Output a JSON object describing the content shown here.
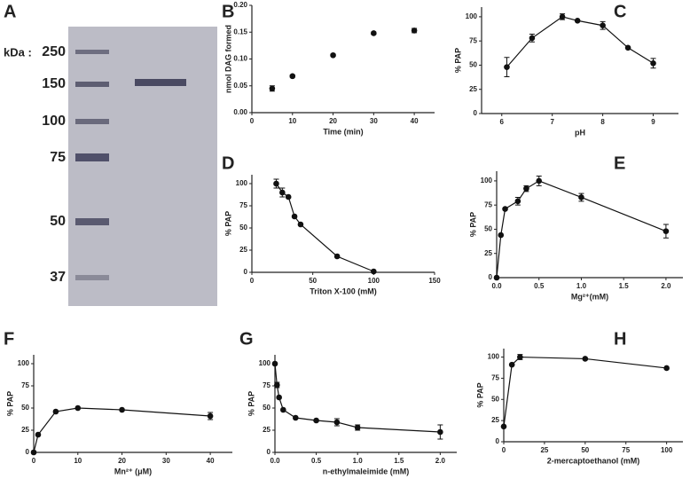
{
  "gel": {
    "panel_label": "A",
    "unit_label": "kDa :",
    "markers": [
      "250",
      "150",
      "100",
      "75",
      "50",
      "37"
    ]
  },
  "chart_data": [
    {
      "type": "scatter",
      "panel_label": "B",
      "xlabel": "Time (min)",
      "ylabel": "nmol DAG formed",
      "color": "#111",
      "x": [
        5,
        10,
        20,
        30,
        40
      ],
      "values": [
        0.045,
        0.068,
        0.107,
        0.148,
        0.153
      ],
      "errors": [
        0.005,
        0.002,
        0.002,
        0.002,
        0.004
      ],
      "xlim": [
        0,
        45
      ],
      "xticks": [
        0,
        10,
        20,
        30,
        40
      ],
      "ylim": [
        0,
        0.2
      ],
      "yticks": [
        {
          "value": 0,
          "label": "0.00"
        },
        {
          "value": 0.05,
          "label": "0.05"
        },
        {
          "value": 0.1,
          "label": "0.10"
        },
        {
          "value": 0.15,
          "label": "0.15"
        },
        {
          "value": 0.2,
          "label": "0.20"
        }
      ]
    },
    {
      "type": "line",
      "panel_label": "C",
      "xlabel": "pH",
      "ylabel": "% PAP",
      "color": "#111",
      "x": [
        6.1,
        6.6,
        7.2,
        7.5,
        8.0,
        8.5,
        9.0
      ],
      "values": [
        48,
        78,
        100,
        96,
        91,
        68,
        52
      ],
      "errors": [
        10,
        4,
        3,
        0,
        4,
        0,
        5
      ],
      "xlim": [
        5.6,
        9.5
      ],
      "xticks": [
        6,
        7,
        8,
        9
      ],
      "ylim": [
        0,
        110
      ],
      "yticks": [
        0,
        25,
        50,
        75,
        100
      ]
    },
    {
      "type": "line",
      "panel_label": "D",
      "xlabel": "Triton X-100 (mM)",
      "ylabel": "% PAP",
      "color": "#111",
      "x": [
        20,
        25,
        30,
        35,
        40,
        70,
        100
      ],
      "values": [
        100,
        90,
        85,
        63,
        54,
        18,
        1
      ],
      "errors": [
        5,
        5,
        0,
        0,
        0,
        0,
        0
      ],
      "xlim": [
        0,
        150
      ],
      "xticks": [
        0,
        50,
        100,
        150
      ],
      "ylim": [
        0,
        110
      ],
      "yticks": [
        0,
        25,
        50,
        75,
        100
      ]
    },
    {
      "type": "line",
      "panel_label": "E",
      "xlabel": "Mg²⁺(mM)",
      "ylabel": "% PAP",
      "color": "#111",
      "x": [
        0,
        0.05,
        0.1,
        0.25,
        0.35,
        0.5,
        1.0,
        2.0
      ],
      "values": [
        0,
        44,
        71,
        79,
        92,
        100,
        83,
        48
      ],
      "errors": [
        0,
        0,
        0,
        4,
        3,
        5,
        4,
        7
      ],
      "xlim": [
        0,
        2.2
      ],
      "xticks": [
        {
          "value": 0,
          "label": "0.0"
        },
        {
          "value": 0.5,
          "label": "0.5"
        },
        {
          "value": 1,
          "label": "1.0"
        },
        {
          "value": 1.5,
          "label": "1.5"
        },
        {
          "value": 2,
          "label": "2.0"
        }
      ],
      "ylim": [
        0,
        110
      ],
      "yticks": [
        0,
        25,
        50,
        75,
        100
      ]
    },
    {
      "type": "line",
      "panel_label": "F",
      "xlabel": "Mn²⁺ (μM)",
      "ylabel": "% PAP",
      "color": "#111",
      "x": [
        0,
        1,
        5,
        10,
        20,
        40
      ],
      "values": [
        0,
        20,
        46,
        50,
        48,
        41
      ],
      "errors": [
        0,
        0,
        0,
        0,
        0,
        4
      ],
      "xlim": [
        0,
        45
      ],
      "xticks": [
        0,
        10,
        20,
        30,
        40
      ],
      "ylim": [
        0,
        110
      ],
      "yticks": [
        0,
        25,
        50,
        75,
        100
      ]
    },
    {
      "type": "line",
      "panel_label": "G",
      "xlabel": "n-ethylmaleimide (mM)",
      "ylabel": "% PAP",
      "color": "#111",
      "x": [
        0,
        0.025,
        0.05,
        0.1,
        0.25,
        0.5,
        0.75,
        1.0,
        2.0
      ],
      "values": [
        100,
        76,
        62,
        48,
        39,
        36,
        34,
        28,
        23
      ],
      "errors": [
        0,
        3,
        0,
        0,
        0,
        0,
        4,
        3,
        8
      ],
      "xlim": [
        0,
        2.2
      ],
      "xticks": [
        {
          "value": 0,
          "label": "0.0"
        },
        {
          "value": 0.5,
          "label": "0.5"
        },
        {
          "value": 1,
          "label": "1.0"
        },
        {
          "value": 1.5,
          "label": "1.5"
        },
        {
          "value": 2,
          "label": "2.0"
        }
      ],
      "ylim": [
        0,
        110
      ],
      "yticks": [
        0,
        25,
        50,
        75,
        100
      ]
    },
    {
      "type": "line",
      "panel_label": "H",
      "xlabel": "2-mercaptoethanol (mM)",
      "ylabel": "% PAP",
      "color": "#111",
      "x": [
        0,
        5,
        10,
        50,
        100
      ],
      "values": [
        18,
        91,
        100,
        98,
        87
      ],
      "errors": [
        0,
        0,
        3,
        0,
        0
      ],
      "xlim": [
        0,
        110
      ],
      "xticks": [
        0,
        25,
        50,
        75,
        100
      ],
      "ylim": [
        0,
        110
      ],
      "yticks": [
        0,
        25,
        50,
        75,
        100
      ]
    }
  ]
}
